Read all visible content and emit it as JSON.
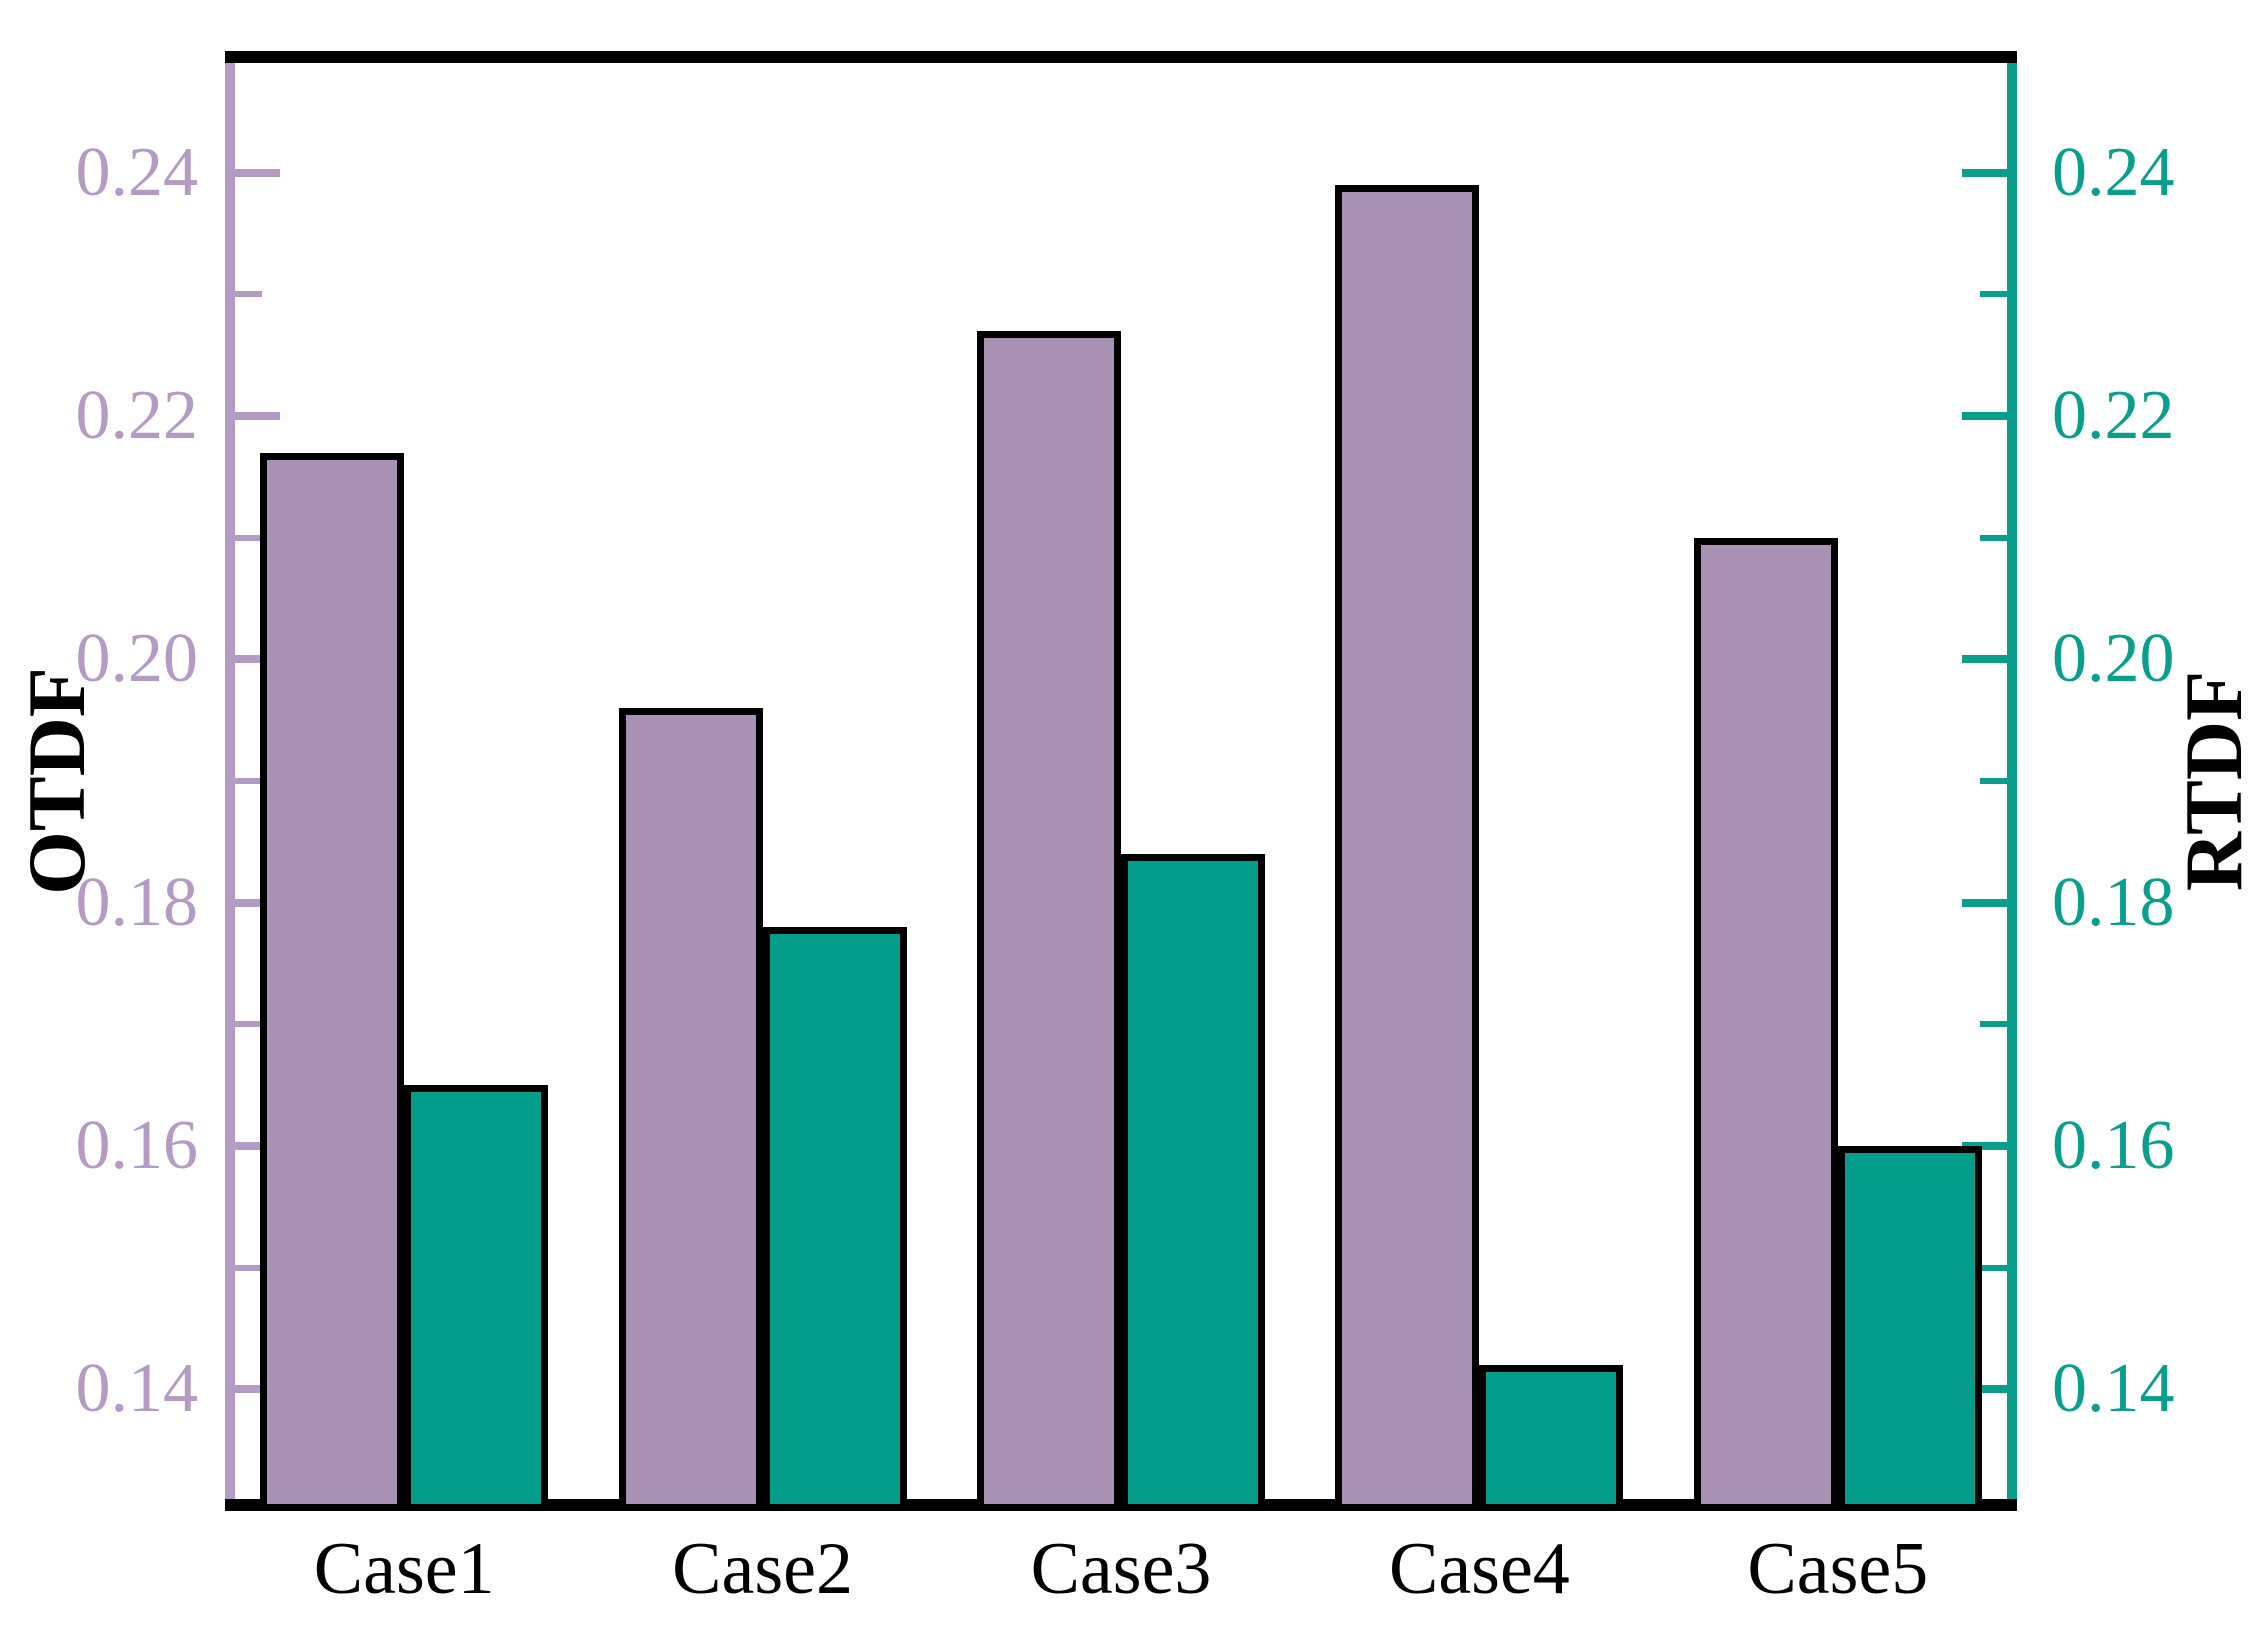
{
  "chart_data": {
    "type": "bar",
    "title": "",
    "categories": [
      "Case1",
      "Case2",
      "Case3",
      "Case4",
      "Case5"
    ],
    "series": [
      {
        "name": "OTDF",
        "axis": "left",
        "color": "#a991b6",
        "outline": "#000000",
        "values": [
          0.217,
          0.196,
          0.227,
          0.239,
          0.21
        ]
      },
      {
        "name": "RTDF",
        "axis": "right",
        "color": "#049c8a",
        "outline": "#000000",
        "values": [
          0.165,
          0.178,
          0.184,
          0.142,
          0.16
        ]
      }
    ],
    "value_range": [
      0.13,
      0.25
    ],
    "major_ticks": [
      {
        "v": 0.14,
        "label": "0.14"
      },
      {
        "v": 0.16,
        "label": "0.16"
      },
      {
        "v": 0.18,
        "label": "0.18"
      },
      {
        "v": 0.2,
        "label": "0.20"
      },
      {
        "v": 0.22,
        "label": "0.22"
      },
      {
        "v": 0.24,
        "label": "0.24"
      }
    ],
    "minor_ticks": [
      0.15,
      0.17,
      0.19,
      0.21,
      0.23
    ],
    "left_axis": {
      "label": "OTDF",
      "axis_color": "#b49bc4",
      "tick_label_color": "#b49bc4",
      "title_color": "#000000"
    },
    "right_axis": {
      "label": "RTDF",
      "axis_color": "#0a9f8c",
      "tick_label_color": "#0a9f8c",
      "title_color": "#000000"
    },
    "top_spine_color": "#000000",
    "bottom_spine_color": "#000000",
    "grid": false,
    "legend": null,
    "xlabel": "",
    "ylabel_left": "OTDF",
    "ylabel_right": "RTDF"
  }
}
